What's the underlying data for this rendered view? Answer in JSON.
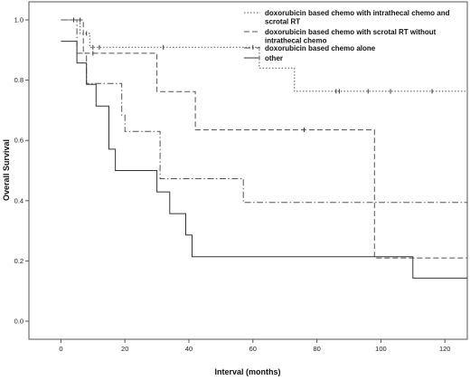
{
  "chart_data": {
    "type": "line",
    "subtype": "kaplan-meier survival curve (step)",
    "xlabel": "Interval (months)",
    "ylabel": "Overall Survival",
    "xlim": [
      -10,
      127
    ],
    "ylim": [
      -0.06,
      1.06
    ],
    "xticks": [
      0,
      20,
      40,
      60,
      80,
      100,
      120
    ],
    "yticks": [
      0.0,
      0.2,
      0.4,
      0.6,
      0.8,
      1.0
    ],
    "xtick_labels": [
      "0",
      "20",
      "40",
      "60",
      "80",
      "100",
      "120"
    ],
    "ytick_labels": [
      "0.0",
      "0.2",
      "0.4",
      "0.6",
      "0.8",
      "1.0"
    ],
    "grid": false,
    "legend_position": "top-right",
    "series": [
      {
        "name": "doxorubicin based chemo with intrathecal chemo and scrotal RT",
        "legend_lines": [
          "doxorubicin based chemo with intrathecal chemo and",
          "scrotal RT"
        ],
        "style": "dotted",
        "color": "#555555",
        "steps": [
          [
            0,
            1.0
          ],
          [
            6,
            0.955
          ],
          [
            9,
            0.909
          ],
          [
            62,
            0.84
          ],
          [
            73,
            0.763
          ],
          [
            127,
            0.763
          ]
        ],
        "censored": [
          [
            4,
            1.0
          ],
          [
            6,
            1.0
          ],
          [
            8,
            0.955
          ],
          [
            10,
            0.909
          ],
          [
            12,
            0.909
          ],
          [
            32,
            0.909
          ],
          [
            60,
            0.909
          ],
          [
            86,
            0.763
          ],
          [
            87,
            0.763
          ],
          [
            96,
            0.763
          ],
          [
            103,
            0.763
          ],
          [
            116,
            0.763
          ]
        ]
      },
      {
        "name": "doxorubicin based chemo with scrotal RT without intrathecal chemo",
        "legend_lines": [
          "doxorubicin based chemo with scrotal RT without",
          "intrathecal chemo"
        ],
        "style": "dashed",
        "color": "#555555",
        "steps": [
          [
            0,
            1.0
          ],
          [
            7,
            0.889
          ],
          [
            30,
            0.762
          ],
          [
            42,
            0.635
          ],
          [
            98,
            0.21
          ],
          [
            127,
            0.21
          ]
        ],
        "censored": [
          [
            10,
            0.889
          ],
          [
            76,
            0.635
          ]
        ]
      },
      {
        "name": "doxorubicin based chemo alone",
        "legend_lines": [
          "doxorubicin based chemo alone"
        ],
        "style": "dash-dot",
        "color": "#555555",
        "steps": [
          [
            0,
            1.0
          ],
          [
            5,
            0.889
          ],
          [
            8,
            0.789
          ],
          [
            19,
            0.684
          ],
          [
            20,
            0.63
          ],
          [
            31,
            0.473
          ],
          [
            57,
            0.394
          ],
          [
            127,
            0.394
          ]
        ],
        "censored": []
      },
      {
        "name": "other",
        "legend_lines": [
          "other"
        ],
        "style": "solid",
        "color": "#333333",
        "steps": [
          [
            0,
            0.929
          ],
          [
            5,
            0.857
          ],
          [
            8,
            0.786
          ],
          [
            11,
            0.714
          ],
          [
            15,
            0.571
          ],
          [
            17,
            0.5
          ],
          [
            30,
            0.429
          ],
          [
            34,
            0.357
          ],
          [
            39,
            0.286
          ],
          [
            41,
            0.214
          ],
          [
            110,
            0.143
          ],
          [
            127,
            0.143
          ]
        ],
        "censored": []
      }
    ]
  }
}
